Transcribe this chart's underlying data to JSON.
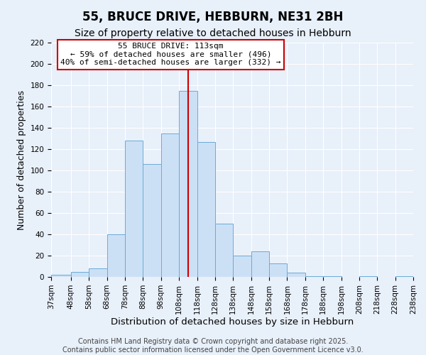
{
  "title": "55, BRUCE DRIVE, HEBBURN, NE31 2BH",
  "subtitle": "Size of property relative to detached houses in Hebburn",
  "xlabel": "Distribution of detached houses by size in Hebburn",
  "ylabel": "Number of detached properties",
  "bin_edges": [
    37,
    48,
    58,
    68,
    78,
    88,
    98,
    108,
    118,
    128,
    138,
    148,
    158,
    168,
    178,
    188,
    198,
    208,
    218,
    228,
    238
  ],
  "bin_counts": [
    2,
    5,
    8,
    40,
    128,
    106,
    135,
    175,
    127,
    50,
    20,
    24,
    13,
    4,
    1,
    1,
    0,
    1,
    0,
    1
  ],
  "bar_facecolor": "#cce0f5",
  "bar_edgecolor": "#6aabd6",
  "vline_x": 113,
  "vline_color": "#cc0000",
  "ylim": [
    0,
    220
  ],
  "yticks": [
    0,
    20,
    40,
    60,
    80,
    100,
    120,
    140,
    160,
    180,
    200,
    220
  ],
  "xtick_labels": [
    "37sqm",
    "48sqm",
    "58sqm",
    "68sqm",
    "78sqm",
    "88sqm",
    "98sqm",
    "108sqm",
    "118sqm",
    "128sqm",
    "138sqm",
    "148sqm",
    "158sqm",
    "168sqm",
    "178sqm",
    "188sqm",
    "198sqm",
    "208sqm",
    "218sqm",
    "228sqm",
    "238sqm"
  ],
  "annotation_title": "55 BRUCE DRIVE: 113sqm",
  "annotation_line1": "← 59% of detached houses are smaller (496)",
  "annotation_line2": "40% of semi-detached houses are larger (332) →",
  "annotation_box_color": "#ffffff",
  "annotation_box_edgecolor": "#cc0000",
  "footer1": "Contains HM Land Registry data © Crown copyright and database right 2025.",
  "footer2": "Contains public sector information licensed under the Open Government Licence v3.0.",
  "bg_color": "#e8f0fa",
  "plot_bg_color": "#e8f0fa",
  "grid_color": "#ffffff",
  "title_fontsize": 12,
  "subtitle_fontsize": 10,
  "xlabel_fontsize": 9.5,
  "ylabel_fontsize": 9,
  "tick_fontsize": 7.5,
  "annotation_fontsize": 8,
  "footer_fontsize": 7
}
